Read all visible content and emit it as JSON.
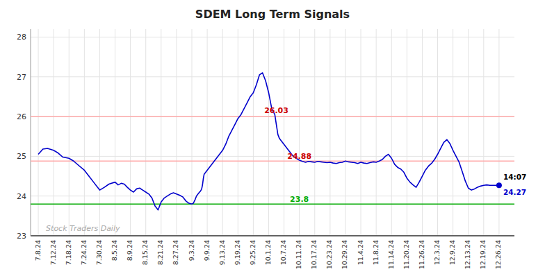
{
  "chart_data": {
    "type": "line",
    "title": "SDEM Long Term Signals",
    "color": "#0000cc",
    "x": [
      0,
      0.3,
      0.6,
      1.0,
      1.3,
      1.6,
      2.0,
      2.3,
      2.6,
      3.0,
      3.3,
      3.6,
      4.0,
      4.3,
      4.6,
      5.0,
      5.2,
      5.4,
      5.6,
      5.8,
      6.0,
      6.2,
      6.4,
      6.6,
      6.8,
      7.0,
      7.2,
      7.4,
      7.6,
      7.8,
      8.0,
      8.2,
      8.4,
      8.6,
      8.8,
      9.0,
      9.2,
      9.4,
      9.6,
      9.8,
      10.0,
      10.1,
      10.2,
      10.3,
      10.4,
      10.5,
      10.55,
      10.6,
      10.65,
      10.7,
      10.75,
      10.8,
      11.0,
      11.2,
      11.4,
      11.6,
      11.8,
      12.0,
      12.2,
      12.4,
      12.6,
      12.8,
      13.0,
      13.2,
      13.4,
      13.6,
      13.8,
      14.0,
      14.2,
      14.4,
      14.6,
      14.8,
      15.0,
      15.2,
      15.4,
      15.5,
      15.6,
      15.7,
      15.8,
      16.0,
      16.2,
      16.4,
      16.6,
      16.8,
      17.0,
      17.2,
      17.4,
      17.6,
      17.8,
      18.0,
      18.2,
      18.4,
      18.6,
      18.8,
      19.0,
      19.2,
      19.4,
      19.6,
      19.8,
      20.0,
      20.2,
      20.4,
      20.6,
      20.8,
      21.0,
      21.2,
      21.4,
      21.6,
      21.8,
      22.0,
      22.2,
      22.4,
      22.6,
      22.8,
      23.0,
      23.2,
      23.4,
      23.6,
      23.8,
      24.0,
      24.2,
      24.4,
      24.6,
      24.8,
      25.0,
      25.2,
      25.4,
      25.6,
      25.8,
      26.0,
      26.2,
      26.4,
      26.6,
      26.8,
      27.0,
      27.2,
      27.4,
      27.6,
      27.8,
      28.0,
      28.2,
      28.4,
      28.6,
      28.8,
      29.0,
      29.2,
      29.4,
      29.6,
      29.8,
      30.0
    ],
    "values": [
      25.05,
      25.18,
      25.2,
      25.15,
      25.08,
      24.98,
      24.95,
      24.88,
      24.78,
      24.65,
      24.5,
      24.35,
      24.15,
      24.22,
      24.3,
      24.35,
      24.28,
      24.32,
      24.3,
      24.22,
      24.15,
      24.1,
      24.18,
      24.2,
      24.15,
      24.1,
      24.05,
      23.95,
      23.75,
      23.65,
      23.85,
      23.95,
      24.0,
      24.05,
      24.08,
      24.05,
      24.02,
      23.98,
      23.88,
      23.82,
      23.8,
      23.82,
      23.9,
      24.0,
      24.05,
      24.1,
      24.12,
      24.15,
      24.2,
      24.3,
      24.45,
      24.55,
      24.65,
      24.75,
      24.85,
      24.95,
      25.05,
      25.15,
      25.3,
      25.5,
      25.65,
      25.8,
      25.95,
      26.05,
      26.2,
      26.35,
      26.5,
      26.6,
      26.8,
      27.05,
      27.1,
      26.9,
      26.6,
      26.2,
      26.05,
      25.8,
      25.55,
      25.45,
      25.4,
      25.3,
      25.2,
      25.1,
      25.0,
      24.95,
      24.9,
      24.87,
      24.85,
      24.87,
      24.86,
      24.85,
      24.87,
      24.86,
      24.85,
      24.84,
      24.85,
      24.83,
      24.82,
      24.84,
      24.85,
      24.88,
      24.86,
      24.85,
      24.84,
      24.82,
      24.85,
      24.83,
      24.82,
      24.84,
      24.86,
      24.85,
      24.88,
      24.92,
      25.0,
      25.05,
      24.95,
      24.8,
      24.72,
      24.68,
      24.6,
      24.45,
      24.35,
      24.28,
      24.22,
      24.35,
      24.5,
      24.65,
      24.75,
      24.82,
      24.92,
      25.05,
      25.2,
      25.35,
      25.42,
      25.32,
      25.15,
      25.0,
      24.85,
      24.62,
      24.38,
      24.2,
      24.15,
      24.18,
      24.22,
      24.25,
      24.27,
      24.28,
      24.27,
      24.27,
      24.27,
      24.27
    ],
    "xlim": [
      -0.5,
      31.0
    ],
    "xticks": [
      {
        "value": 0,
        "label": "7.8.24"
      },
      {
        "value": 1,
        "label": "7.12.24"
      },
      {
        "value": 2,
        "label": "7.18.24"
      },
      {
        "value": 3,
        "label": "7.24.24"
      },
      {
        "value": 4,
        "label": "7.30.24"
      },
      {
        "value": 5,
        "label": "8.5.24"
      },
      {
        "value": 6,
        "label": "8.9.24"
      },
      {
        "value": 7,
        "label": "8.15.24"
      },
      {
        "value": 8,
        "label": "8.21.24"
      },
      {
        "value": 9,
        "label": "8.27.24"
      },
      {
        "value": 10,
        "label": "9.3.24"
      },
      {
        "value": 11,
        "label": "9.9.24"
      },
      {
        "value": 12,
        "label": "9.13.24"
      },
      {
        "value": 13,
        "label": "9.19.24"
      },
      {
        "value": 14,
        "label": "9.25.24"
      },
      {
        "value": 15,
        "label": "10.1.24"
      },
      {
        "value": 16,
        "label": "10.7.24"
      },
      {
        "value": 17,
        "label": "10.11.24"
      },
      {
        "value": 18,
        "label": "10.17.24"
      },
      {
        "value": 19,
        "label": "10.23.24"
      },
      {
        "value": 20,
        "label": "10.29.24"
      },
      {
        "value": 21,
        "label": "11.4.24"
      },
      {
        "value": 22,
        "label": "11.8.24"
      },
      {
        "value": 23,
        "label": "11.14.24"
      },
      {
        "value": 24,
        "label": "11.20.24"
      },
      {
        "value": 25,
        "label": "11.26.24"
      },
      {
        "value": 26,
        "label": "12.3.24"
      },
      {
        "value": 27,
        "label": "12.9.24"
      },
      {
        "value": 28,
        "label": "12.13.24"
      },
      {
        "value": 29,
        "label": "12.19.24"
      },
      {
        "value": 30,
        "label": "12.26.24"
      }
    ],
    "ylim": [
      23.0,
      28.2
    ],
    "yticks": [
      23,
      24,
      25,
      26,
      27,
      28
    ],
    "grid": true,
    "hlines": [
      {
        "y": 26.0,
        "color": "#ffaaaa"
      },
      {
        "y": 24.88,
        "color": "#ffaaaa"
      },
      {
        "y": 23.8,
        "color": "#00aa00"
      }
    ],
    "annotations": [
      {
        "text": "26.03",
        "x": 15.5,
        "y": 26.03,
        "color": "#cc0000"
      },
      {
        "text": "24.88",
        "x": 17.0,
        "y": 24.88,
        "color": "#cc0000"
      },
      {
        "text": "23.8",
        "x": 17.0,
        "y": 23.8,
        "color": "#00aa00"
      }
    ],
    "current_point": {
      "x": 30,
      "y": 24.27,
      "label": "14:07",
      "color": "#0000cc"
    },
    "watermark": {
      "text": "Stock Traders Daily",
      "x": 0.5,
      "y": 23.12,
      "color": "#aaaaaa"
    }
  }
}
